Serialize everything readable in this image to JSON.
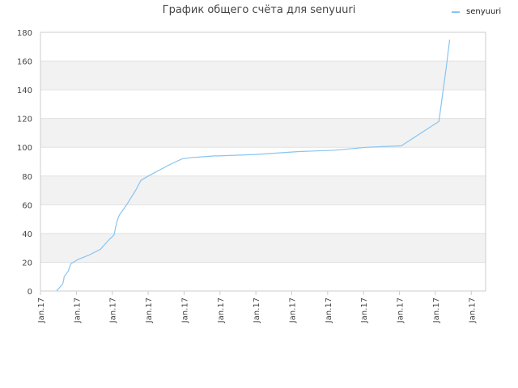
{
  "chart_data": {
    "type": "line",
    "title": "График общего счёта для senyuuri",
    "legend": {
      "position": "top-right"
    },
    "colors": {
      "series": "#88c4f0",
      "band": "#f2f2f2",
      "grid": "#e0e0e0",
      "axis": "#cccccc"
    },
    "grid": true,
    "ylim": [
      0,
      180
    ],
    "yticks": [
      "0",
      "20",
      "40",
      "60",
      "80",
      "100",
      "120",
      "140",
      "160",
      "180"
    ],
    "xticks": [
      "Jan.17",
      "Jan.17",
      "Jan.17",
      "Jan.17",
      "Jan.17",
      "Jan.17",
      "Jan.17",
      "Jan.17",
      "Jan.17",
      "Jan.17",
      "Jan.17",
      "Jan.17",
      "Jan.17"
    ],
    "xlim": [
      0,
      12.4
    ],
    "series": [
      {
        "name": "senyuuri",
        "x": [
          0.45,
          0.55,
          0.62,
          0.65,
          0.66,
          0.72,
          0.78,
          0.8,
          0.85,
          1.05,
          1.35,
          1.67,
          1.92,
          2.05,
          2.1,
          2.15,
          2.2,
          2.4,
          2.65,
          2.8,
          3.0,
          3.6,
          3.95,
          4.25,
          4.3,
          4.85,
          4.95,
          6.0,
          7.15,
          8.2,
          9.1,
          10.05,
          11.1,
          11.3,
          11.35,
          11.4
        ],
        "y": [
          0,
          3,
          5,
          8,
          10,
          12,
          14,
          16,
          19,
          22,
          25,
          29,
          36,
          39,
          45,
          50,
          53,
          60,
          70,
          77,
          80,
          88,
          92,
          93,
          93,
          94,
          94,
          95,
          97,
          98,
          100,
          101,
          118,
          155,
          165,
          175
        ]
      }
    ]
  }
}
